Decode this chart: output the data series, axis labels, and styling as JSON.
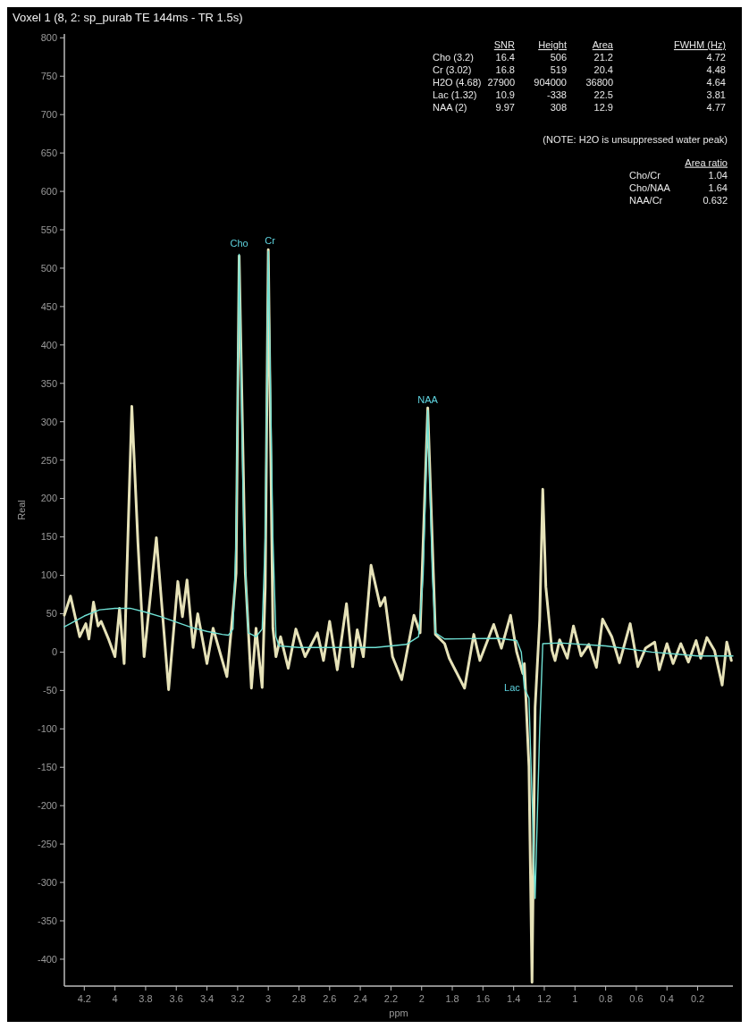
{
  "chart_data": {
    "type": "line",
    "title": "Voxel 1 (8, 2: sp_purab TE 144ms - TR 1.5s)",
    "xlabel": "ppm",
    "ylabel": "Real",
    "xlim": [
      4.33,
      -0.03
    ],
    "ylim": [
      -435,
      805
    ],
    "xticks": [
      4.2,
      4,
      3.8,
      3.6,
      3.4,
      3.2,
      3,
      2.8,
      2.6,
      2.4,
      2.2,
      2,
      1.8,
      1.6,
      1.4,
      1.2,
      1,
      0.8,
      0.6,
      0.4,
      0.2
    ],
    "yticks": [
      -400,
      -350,
      -300,
      -250,
      -200,
      -150,
      -100,
      -50,
      0,
      50,
      100,
      150,
      200,
      250,
      300,
      350,
      400,
      450,
      500,
      550,
      600,
      650,
      700,
      750,
      800
    ],
    "grid": false,
    "marker": "none",
    "line_style": "solid",
    "series": [
      {
        "color": "#e6e2b8",
        "x": [
          4.33,
          4.29,
          4.23,
          4.19,
          4.17,
          4.14,
          4.11,
          4.09,
          4.04,
          4.0,
          3.97,
          3.94,
          3.89,
          3.85,
          3.81,
          3.73,
          3.65,
          3.59,
          3.56,
          3.53,
          3.49,
          3.46,
          3.4,
          3.36,
          3.27,
          3.23,
          3.21,
          3.19,
          3.15,
          3.11,
          3.08,
          3.04,
          3.02,
          3.0,
          2.97,
          2.95,
          2.92,
          2.87,
          2.82,
          2.76,
          2.68,
          2.64,
          2.6,
          2.55,
          2.49,
          2.45,
          2.42,
          2.38,
          2.33,
          2.27,
          2.24,
          2.19,
          2.13,
          2.05,
          2.01,
          1.96,
          1.91,
          1.85,
          1.82,
          1.72,
          1.66,
          1.62,
          1.53,
          1.48,
          1.42,
          1.38,
          1.34,
          1.33,
          1.3,
          1.28,
          1.26,
          1.23,
          1.21,
          1.19,
          1.15,
          1.13,
          1.1,
          1.05,
          1.01,
          0.96,
          0.91,
          0.86,
          0.82,
          0.76,
          0.71,
          0.64,
          0.59,
          0.54,
          0.48,
          0.45,
          0.4,
          0.36,
          0.31,
          0.26,
          0.21,
          0.18,
          0.14,
          0.09,
          0.04,
          0.01,
          -0.02
        ],
        "values": [
          48,
          73,
          20,
          37,
          17,
          65,
          34,
          40,
          16,
          -6,
          57,
          -15,
          320,
          142,
          -6,
          149,
          -49,
          92,
          46,
          94,
          6,
          50,
          -15,
          31,
          -32,
          54,
          103,
          516,
          103,
          -47,
          31,
          -46,
          85,
          524,
          31,
          -6,
          20,
          -21,
          30,
          -6,
          25,
          -11,
          40,
          -23,
          63,
          -19,
          29,
          -6,
          113,
          60,
          71,
          -6,
          -36,
          48,
          25,
          318,
          23,
          11,
          -8,
          -47,
          23,
          -11,
          36,
          5,
          48,
          0,
          -28,
          -15,
          -149,
          -430,
          -72,
          42,
          212,
          85,
          2,
          -11,
          16,
          -8,
          34,
          -5,
          10,
          -20,
          43,
          20,
          -14,
          37,
          -19,
          5,
          13,
          -23,
          11,
          -15,
          11,
          -13,
          15,
          -8,
          19,
          2,
          -43,
          13,
          -11
        ]
      },
      {
        "color": "#6fe0d4",
        "x": [
          4.33,
          4.2,
          4.1,
          4.0,
          3.9,
          3.8,
          3.7,
          3.6,
          3.5,
          3.4,
          3.3,
          3.26,
          3.23,
          3.21,
          3.19,
          3.16,
          3.13,
          3.08,
          3.04,
          3.02,
          3.0,
          2.97,
          2.95,
          2.93,
          2.8,
          2.5,
          2.3,
          2.1,
          2.02,
          1.99,
          1.96,
          1.93,
          1.91,
          1.85,
          1.5,
          1.38,
          1.35,
          1.33,
          1.3,
          1.26,
          1.23,
          1.21,
          1.1,
          0.8,
          0.5,
          0.2,
          -0.03
        ],
        "values": [
          33,
          47,
          55,
          57,
          57,
          52,
          46,
          39,
          32,
          27,
          23,
          22,
          30,
          150,
          518,
          150,
          25,
          20,
          30,
          150,
          522,
          150,
          20,
          8,
          6,
          6,
          6,
          10,
          20,
          100,
          315,
          100,
          25,
          17,
          18,
          15,
          0,
          -47,
          -60,
          -321,
          -100,
          11,
          12,
          8,
          0,
          -5,
          -5
        ]
      }
    ],
    "annotations": [
      "SNR",
      "Height",
      "Area",
      "FWHM (Hz)",
      "Cho (3.2)",
      "16.4",
      "506",
      "21.2",
      "4.72",
      "Cr (3.02)",
      "16.8",
      "519",
      "20.4",
      "4.48",
      "H2O (4.68)",
      "27900",
      "904000",
      "36800",
      "4.64",
      "Lac (1.32)",
      "10.9",
      "-338",
      "22.5",
      "3.81",
      "NAA (2)",
      "9.97",
      "308",
      "12.9",
      "4.77",
      "(NOTE: H2O is unsuppressed water peak)",
      "Area ratio",
      "Cho/Cr",
      "1.04",
      "Cho/NAA",
      "1.64",
      "NAA/Cr",
      "0.632",
      {
        "text": "Cho",
        "x": 3.19,
        "y": 518
      },
      {
        "text": "Cr",
        "x": 3.0,
        "y": 522
      },
      {
        "text": "NAA",
        "x": 1.96,
        "y": 315
      },
      {
        "text": "Lac",
        "x": 1.3,
        "y": -60
      }
    ]
  }
}
